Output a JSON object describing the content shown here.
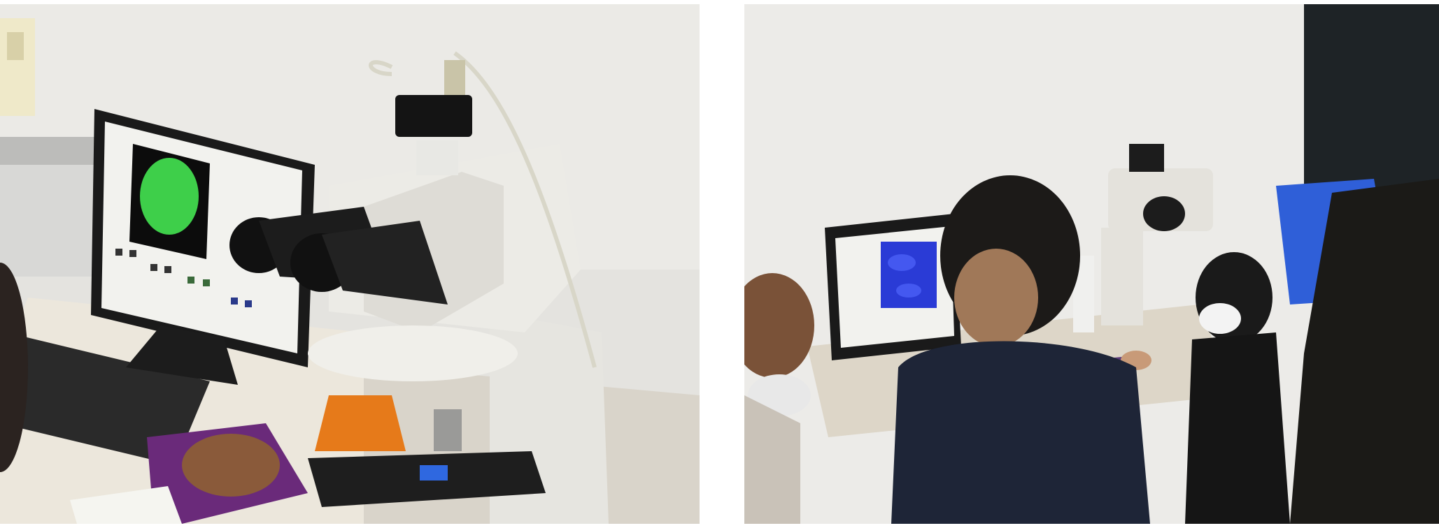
{
  "photos": [
    {
      "name": "left-photo",
      "subject": "fluorescence-microscope-with-monitor",
      "monitor_image_color": "#3ecf4a"
    },
    {
      "name": "right-photo",
      "subject": "students-at-microscope-workstation",
      "monitor_image_color": "#2a3bd6"
    }
  ],
  "colors": {
    "background": "#ffffff",
    "wall": "#e7e6e2",
    "microscope_body": "#e9e8e3",
    "orange_shield": "#e67a1a",
    "green_fluorescence": "#3ecf4a",
    "blue_fluorescence": "#2a3bd6"
  }
}
